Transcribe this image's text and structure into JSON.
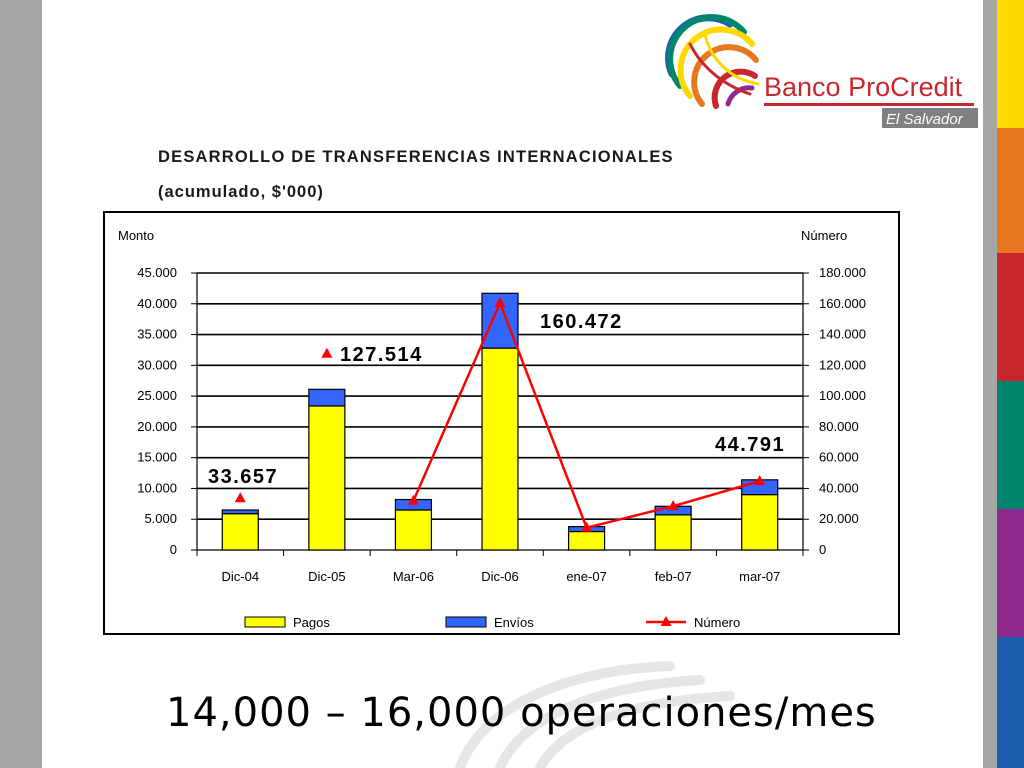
{
  "logo": {
    "brand_part1": "Banco ",
    "brand_part2": "ProCredit",
    "country": "El Salvador"
  },
  "chart_data": {
    "type": "bar",
    "title": "DESARROLLO DE TRANSFERENCIAS INTERNACIONALES",
    "subtitle": "(acumulado, $'000)",
    "ylabel": "Monto",
    "y2label": "Número",
    "categories": [
      "Dic-04",
      "Dic-05",
      "Mar-06",
      "Dic-06",
      "ene-07",
      "feb-07",
      "mar-07"
    ],
    "ylim": [
      0,
      45000
    ],
    "y2lim": [
      0,
      180000
    ],
    "yticks": [
      "0",
      "5.000",
      "10.000",
      "15.000",
      "20.000",
      "25.000",
      "30.000",
      "35.000",
      "40.000",
      "45.000"
    ],
    "y2ticks": [
      "0",
      "20.000",
      "40.000",
      "60.000",
      "80.000",
      "100.000",
      "120.000",
      "140.000",
      "160.000",
      "180.000"
    ],
    "stacked": true,
    "series": [
      {
        "name": "Pagos",
        "axis": "left",
        "color": "#ffff00",
        "values": [
          5900,
          23400,
          6500,
          32800,
          3000,
          5700,
          9000
        ]
      },
      {
        "name": "Envíos",
        "axis": "left",
        "color": "#3366ff",
        "values": [
          600,
          2700,
          1700,
          8900,
          800,
          1400,
          2400
        ]
      },
      {
        "name": "Número",
        "axis": "right",
        "type": "line",
        "color": "#ff0000",
        "values": [
          33657,
          127514,
          32000,
          160472,
          14500,
          28500,
          44791
        ]
      }
    ],
    "data_labels": [
      {
        "category": "Dic-04",
        "text": "33.657"
      },
      {
        "category": "Dic-05",
        "text": "127.514"
      },
      {
        "category": "Dic-06",
        "text": "160.472"
      },
      {
        "category": "mar-07",
        "text": "44.791"
      }
    ],
    "legend_position": "bottom",
    "grid": true
  },
  "footer": {
    "text": "14,000 – 16,000 operaciones/mes"
  },
  "colors": {
    "side_strip": [
      "#ffd800",
      "#e87722",
      "#c8252c",
      "#00866e",
      "#8e2a8e",
      "#1b5fad"
    ]
  }
}
